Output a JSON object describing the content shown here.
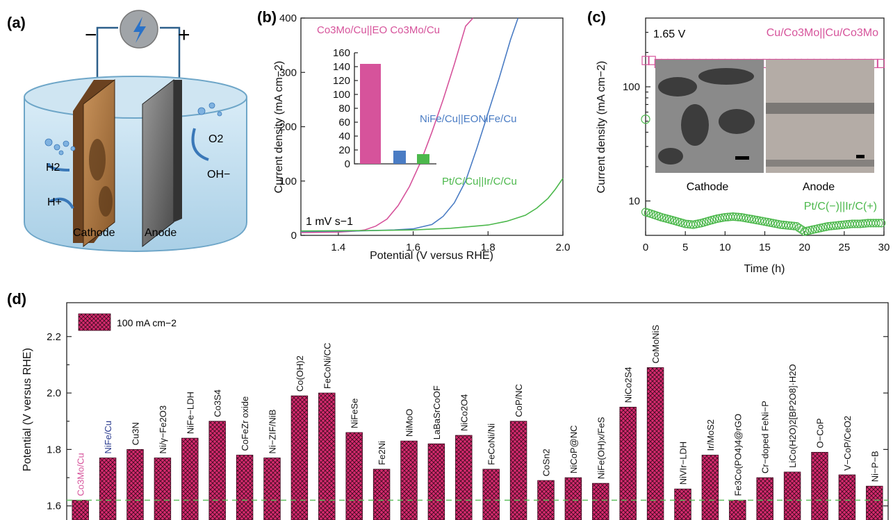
{
  "panel_a": {
    "label": "(a)",
    "minus": "−",
    "plus": "+",
    "h2": "H2",
    "hplus": "H+",
    "o2": "O2",
    "oh": "OH−",
    "cathode": "Cathode",
    "anode": "Anode"
  },
  "colors": {
    "pink": "#d6539b",
    "blue": "#4a7cc4",
    "green": "#4cb84c",
    "bar_fill": "#d62a6e",
    "navy": "#2a3b8f"
  },
  "chart_data": [
    {
      "panel": "(b)",
      "type": "line",
      "xlabel": "Potential (V versus RHE)",
      "ylabel": "Current density (mA cm−2)",
      "xlim": [
        1.3,
        2.0
      ],
      "ylim": [
        0,
        400
      ],
      "xticks": [
        "1.4",
        "1.6",
        "1.8",
        "2.0"
      ],
      "yticks": [
        "0",
        "100",
        "200",
        "300",
        "400"
      ],
      "annotation": "1 mV s−1",
      "series": [
        {
          "name": "Co3Mo/Cu||EO Co3Mo/Cu",
          "color": "#d6539b",
          "x": [
            1.3,
            1.4,
            1.45,
            1.47,
            1.5,
            1.53,
            1.56,
            1.59,
            1.62,
            1.65,
            1.68,
            1.71,
            1.74,
            1.76
          ],
          "y": [
            5,
            6,
            8,
            10,
            17,
            30,
            55,
            90,
            135,
            190,
            250,
            315,
            385,
            400
          ]
        },
        {
          "name": "NiFe/Cu||EONiFe/Cu",
          "color": "#4a7cc4",
          "x": [
            1.3,
            1.45,
            1.55,
            1.6,
            1.65,
            1.68,
            1.71,
            1.74,
            1.77,
            1.8,
            1.83,
            1.86,
            1.88
          ],
          "y": [
            7,
            8,
            10,
            12,
            20,
            35,
            60,
            100,
            160,
            225,
            290,
            360,
            400
          ]
        },
        {
          "name": "Pt/C/Cu||Ir/C/Cu",
          "color": "#4cb84c",
          "x": [
            1.3,
            1.5,
            1.6,
            1.7,
            1.8,
            1.85,
            1.9,
            1.93,
            1.96,
            1.98,
            2.0
          ],
          "y": [
            8,
            9,
            10,
            13,
            19,
            26,
            37,
            50,
            68,
            85,
            105
          ]
        }
      ],
      "inset": {
        "type": "bar",
        "yticks": [
          "0",
          "20",
          "40",
          "60",
          "80",
          "100",
          "120",
          "140",
          "160"
        ],
        "ylim": [
          0,
          160
        ],
        "values": [
          144,
          19,
          14
        ],
        "colors": [
          "#d6539b",
          "#4a7cc4",
          "#4cb84c"
        ]
      }
    },
    {
      "panel": "(c)",
      "type": "scatter",
      "xlabel": "Time (h)",
      "ylabel": "Current density (mA cm−2)",
      "xlim": [
        0,
        30
      ],
      "ylim_log": [
        5,
        400
      ],
      "yscale": "log",
      "xticks": [
        "0",
        "5",
        "10",
        "15",
        "20",
        "25",
        "30"
      ],
      "yticks": [
        "10",
        "100"
      ],
      "annotation": "1.65 V",
      "series": [
        {
          "name": "Cu/Co3Mo||Cu/Co3Mo",
          "color": "#d6539b",
          "marker": "square",
          "value": 160,
          "start": 170
        },
        {
          "name": "Pt/C(−)||Ir/C(+)",
          "color": "#4cb84c",
          "marker": "circle",
          "x": [
            0,
            1,
            2,
            3,
            4,
            5,
            6,
            7,
            8,
            9,
            10,
            11,
            12,
            13,
            14,
            15,
            16,
            17,
            18,
            19,
            20,
            21,
            22,
            23,
            24,
            25,
            26,
            27,
            28,
            29,
            30
          ],
          "y": [
            8.0,
            7.6,
            7.2,
            6.9,
            6.6,
            6.3,
            6.2,
            6.4,
            6.7,
            7.0,
            7.2,
            7.3,
            7.2,
            7.0,
            6.8,
            6.6,
            6.4,
            6.2,
            6.1,
            6.0,
            5.4,
            5.6,
            5.8,
            6.0,
            6.1,
            6.2,
            6.3,
            6.3,
            6.4,
            6.4,
            6.4
          ],
          "outlier": {
            "x": 0,
            "y": 52
          }
        }
      ],
      "inset_labels": [
        "Cathode",
        "Anode"
      ]
    },
    {
      "panel": "(d)",
      "type": "bar",
      "ylabel": "Potential (V versus RHE)",
      "ylim": [
        1.55,
        2.32
      ],
      "yticks": [
        "1.6",
        "1.8",
        "2.0",
        "2.2"
      ],
      "legend": "100 mA cm−2",
      "reference_line": 1.62,
      "categories": [
        "Co3Mo/Cu",
        "NiFe/Cu",
        "Cu3N",
        "Ni/γ−Fe2O3",
        "NiFe−LDH",
        "Co3S4",
        "CoFeZr oxide",
        "Ni−ZIF/NiB",
        "Co(OH)2",
        "FeCoNi/CC",
        "NiFeSe",
        "Fe2Ni",
        "NiMoO",
        "LaBaSrCoOF",
        "NiCo2O4",
        "FeCoNi/Ni",
        "CoP/NC",
        "CoSn2",
        "NiCoP@NC",
        "NiFe(OH)x/FeS",
        "NiCo2S4",
        "CoMoNiS",
        "NiVIr−LDH",
        "Ir/MoS2",
        "Fe3Co(PO4)4@rGO",
        "Cr−doped FeNi−P",
        "LiCo(H2O)2[BP2O8]·H2O",
        "O−CoP",
        "V−CoP/CeO2",
        "Ni−P−B"
      ],
      "values": [
        1.62,
        1.77,
        1.8,
        1.77,
        1.84,
        1.9,
        1.78,
        1.77,
        1.99,
        2.0,
        1.86,
        1.73,
        1.83,
        1.82,
        1.85,
        1.73,
        1.9,
        1.69,
        1.7,
        1.68,
        1.95,
        2.09,
        1.66,
        1.78,
        1.62,
        1.7,
        1.72,
        1.79,
        1.71,
        1.67
      ],
      "label_colors": [
        "#d6539b",
        "#2a3b8f"
      ]
    }
  ]
}
